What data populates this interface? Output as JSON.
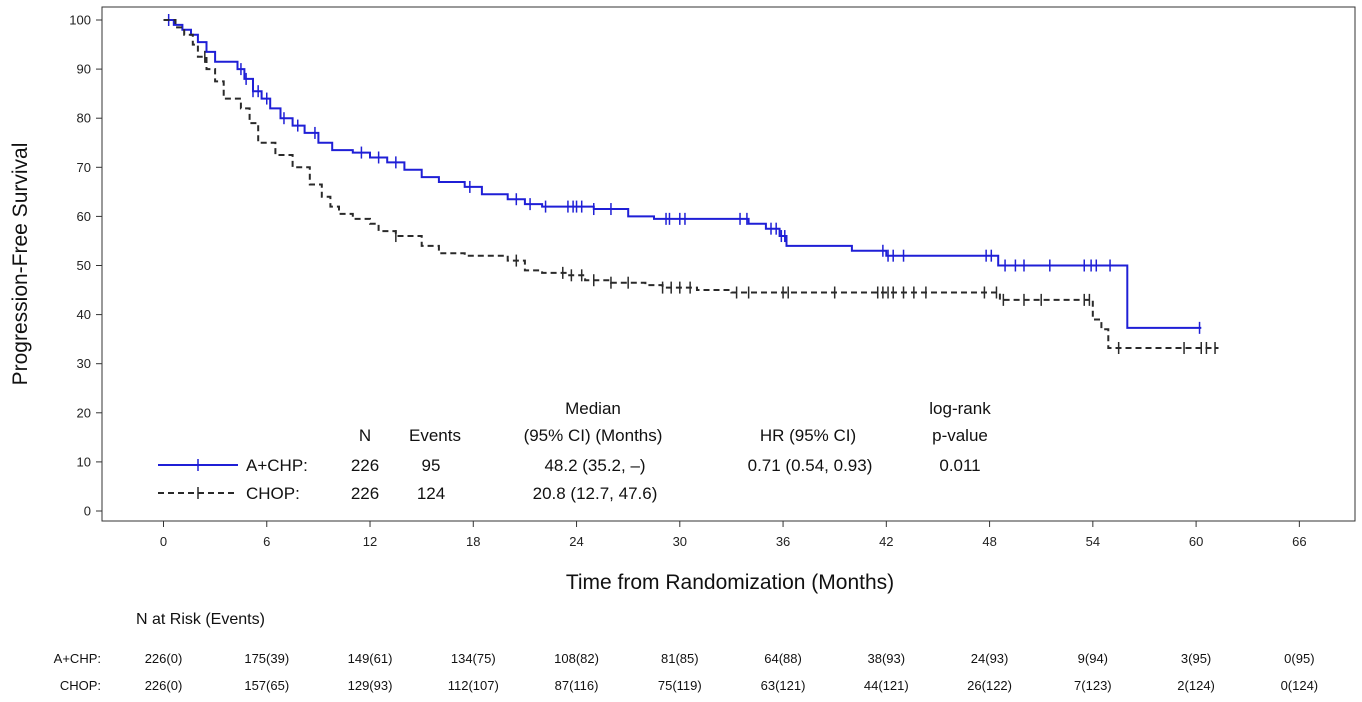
{
  "chart_data": {
    "type": "line",
    "title": "",
    "xlabel": "Time from Randomization (Months)",
    "ylabel": "Progression-Free Survival",
    "xlim": [
      -3,
      69
    ],
    "ylim": [
      -2,
      102
    ],
    "xticks": [
      "0",
      "6",
      "12",
      "18",
      "24",
      "30",
      "36",
      "42",
      "48",
      "54",
      "60",
      "66"
    ],
    "yticks": [
      "0",
      "10",
      "20",
      "30",
      "40",
      "50",
      "60",
      "70",
      "80",
      "90",
      "100"
    ],
    "grid": false,
    "legend_position": "lower-left",
    "series": [
      {
        "name": "A+CHP",
        "color": "#1f1fd6",
        "style": "solid",
        "points": [
          [
            0,
            100
          ],
          [
            0.6,
            99
          ],
          [
            1.1,
            98
          ],
          [
            1.6,
            97
          ],
          [
            2,
            95.5
          ],
          [
            2.5,
            93.5
          ],
          [
            3,
            91.5
          ],
          [
            4.3,
            90
          ],
          [
            4.7,
            88
          ],
          [
            5.2,
            85.5
          ],
          [
            5.7,
            84
          ],
          [
            6.2,
            82
          ],
          [
            6.8,
            80
          ],
          [
            7.5,
            78.5
          ],
          [
            8.2,
            77
          ],
          [
            9,
            75
          ],
          [
            9.8,
            73.5
          ],
          [
            11,
            73
          ],
          [
            12,
            72
          ],
          [
            13,
            71
          ],
          [
            14,
            69.5
          ],
          [
            15,
            68
          ],
          [
            16,
            67
          ],
          [
            17.5,
            66
          ],
          [
            18.5,
            64.5
          ],
          [
            20,
            63.5
          ],
          [
            21,
            62.5
          ],
          [
            22,
            62
          ],
          [
            25,
            61.5
          ],
          [
            27,
            60
          ],
          [
            28.5,
            59.5
          ],
          [
            33,
            59.5
          ],
          [
            34,
            58.5
          ],
          [
            35,
            57.5
          ],
          [
            35.8,
            56
          ],
          [
            36.2,
            54
          ],
          [
            40,
            53
          ],
          [
            42,
            52
          ],
          [
            47.8,
            52
          ],
          [
            48.5,
            50
          ],
          [
            56,
            50
          ],
          [
            56,
            37.3
          ],
          [
            60.3,
            37.3
          ]
        ],
        "censor_x": [
          0.3,
          4.5,
          4.8,
          5.2,
          5.5,
          6,
          7,
          7.8,
          8.8,
          11.5,
          12.5,
          13.5,
          17.8,
          20.5,
          21.3,
          22.2,
          23.5,
          23.8,
          24,
          24.3,
          25,
          26,
          29.2,
          29.4,
          30,
          30.3,
          33.5,
          33.9,
          35.3,
          35.6,
          35.9,
          36.1,
          41.8,
          42.1,
          42.4,
          43,
          47.8,
          48.1,
          48.9,
          49.5,
          50,
          51.5,
          53.5,
          53.9,
          54.2,
          55,
          60.2
        ]
      },
      {
        "name": "CHOP",
        "color": "#2a2a2a",
        "style": "dashed",
        "points": [
          [
            0,
            100
          ],
          [
            0.7,
            98.5
          ],
          [
            1.2,
            97
          ],
          [
            1.7,
            95
          ],
          [
            2,
            92.5
          ],
          [
            2.5,
            90
          ],
          [
            3,
            87.5
          ],
          [
            3.5,
            84
          ],
          [
            4.5,
            82
          ],
          [
            5,
            79
          ],
          [
            5.5,
            75
          ],
          [
            6.5,
            72.5
          ],
          [
            7.5,
            70
          ],
          [
            8.5,
            66.5
          ],
          [
            9.2,
            64
          ],
          [
            9.7,
            62
          ],
          [
            10.2,
            60.5
          ],
          [
            11,
            59.5
          ],
          [
            12,
            58.5
          ],
          [
            12.5,
            57
          ],
          [
            13.5,
            56
          ],
          [
            15,
            54
          ],
          [
            16,
            52.5
          ],
          [
            17.5,
            52
          ],
          [
            20,
            51
          ],
          [
            21,
            49
          ],
          [
            22,
            48.5
          ],
          [
            23.5,
            48
          ],
          [
            24.5,
            47
          ],
          [
            26,
            46.5
          ],
          [
            28,
            46
          ],
          [
            29,
            45.5
          ],
          [
            31,
            45
          ],
          [
            33,
            44.5
          ],
          [
            48.3,
            44.5
          ],
          [
            48.6,
            43
          ],
          [
            54,
            43
          ],
          [
            54,
            39
          ],
          [
            54.5,
            37
          ],
          [
            54.9,
            33.2
          ],
          [
            61.3,
            33.2
          ]
        ],
        "censor_x": [
          2.4,
          13.5,
          20.5,
          23.2,
          23.7,
          24.3,
          25,
          26,
          27,
          29,
          29.5,
          30,
          30.6,
          33.3,
          34,
          36,
          36.3,
          39,
          41.5,
          41.8,
          42.1,
          42.4,
          43,
          43.6,
          44.3,
          47.7,
          48.4,
          48.8,
          50,
          51,
          53.5,
          53.8,
          55.5,
          59.3,
          60.3,
          60.6,
          61.1
        ]
      }
    ]
  },
  "legend": {
    "headers": {
      "n": "N",
      "events": "Events",
      "median_line1": "Median",
      "median_line2": "(95% CI) (Months)",
      "hr": "HR (95% CI)",
      "logrank_line1": "log-rank",
      "logrank_line2": "p-value"
    },
    "rows": [
      {
        "label": "A+CHP:",
        "n": "226",
        "events": "95",
        "median": "48.2 (35.2, –)",
        "hr": "0.71 (0.54, 0.93)",
        "pvalue": "0.011"
      },
      {
        "label": "CHOP:",
        "n": "226",
        "events": "124",
        "median": "20.8 (12.7, 47.6)",
        "hr": "",
        "pvalue": ""
      }
    ]
  },
  "risk_table": {
    "title": "N at Risk (Events)",
    "rows": [
      {
        "label": "A+CHP:",
        "values": [
          "226(0)",
          "175(39)",
          "149(61)",
          "134(75)",
          "108(82)",
          "81(85)",
          "64(88)",
          "38(93)",
          "24(93)",
          "9(94)",
          "3(95)",
          "0(95)"
        ]
      },
      {
        "label": "CHOP:",
        "values": [
          "226(0)",
          "157(65)",
          "129(93)",
          "112(107)",
          "87(116)",
          "75(119)",
          "63(121)",
          "44(121)",
          "26(122)",
          "7(123)",
          "2(124)",
          "0(124)"
        ]
      }
    ]
  }
}
